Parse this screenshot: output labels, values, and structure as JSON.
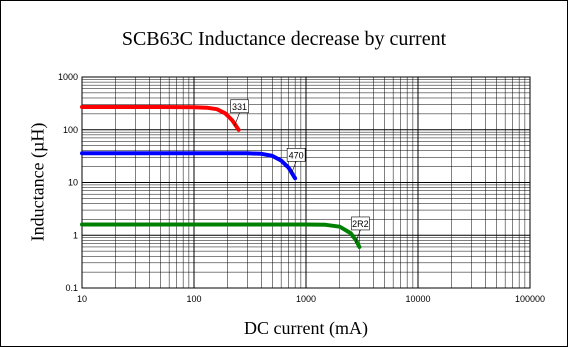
{
  "chart_data": {
    "type": "line",
    "title": "SCB63C Inductance decrease by current",
    "xlabel": "DC current (mA)",
    "ylabel": "Inductance (µH)",
    "x_scale": "log",
    "y_scale": "log",
    "xlim": [
      10,
      100000
    ],
    "ylim": [
      0.1,
      1000
    ],
    "x_ticks": [
      "10",
      "100",
      "1000",
      "10000",
      "100000"
    ],
    "y_ticks": [
      "1000",
      "100",
      "10",
      "1",
      "0.1"
    ],
    "grid": true,
    "series": [
      {
        "name": "331",
        "color": "#ff0000",
        "points": [
          [
            10,
            270
          ],
          [
            20,
            270
          ],
          [
            50,
            270
          ],
          [
            100,
            268
          ],
          [
            130,
            262
          ],
          [
            160,
            245
          ],
          [
            190,
            205
          ],
          [
            220,
            150
          ],
          [
            250,
            100
          ]
        ]
      },
      {
        "name": "470",
        "color": "#0000ff",
        "points": [
          [
            10,
            36
          ],
          [
            50,
            36
          ],
          [
            100,
            36
          ],
          [
            200,
            36
          ],
          [
            300,
            35.8
          ],
          [
            400,
            35
          ],
          [
            500,
            32
          ],
          [
            600,
            26
          ],
          [
            700,
            19
          ],
          [
            800,
            12
          ]
        ]
      },
      {
        "name": "2R2",
        "color": "#008000",
        "points": [
          [
            10,
            1.6
          ],
          [
            100,
            1.6
          ],
          [
            500,
            1.6
          ],
          [
            1000,
            1.6
          ],
          [
            1500,
            1.58
          ],
          [
            2000,
            1.45
          ],
          [
            2500,
            1.1
          ],
          [
            2800,
            0.8
          ],
          [
            3000,
            0.6
          ]
        ]
      }
    ],
    "annotations": [
      "331",
      "470",
      "2R2"
    ]
  }
}
